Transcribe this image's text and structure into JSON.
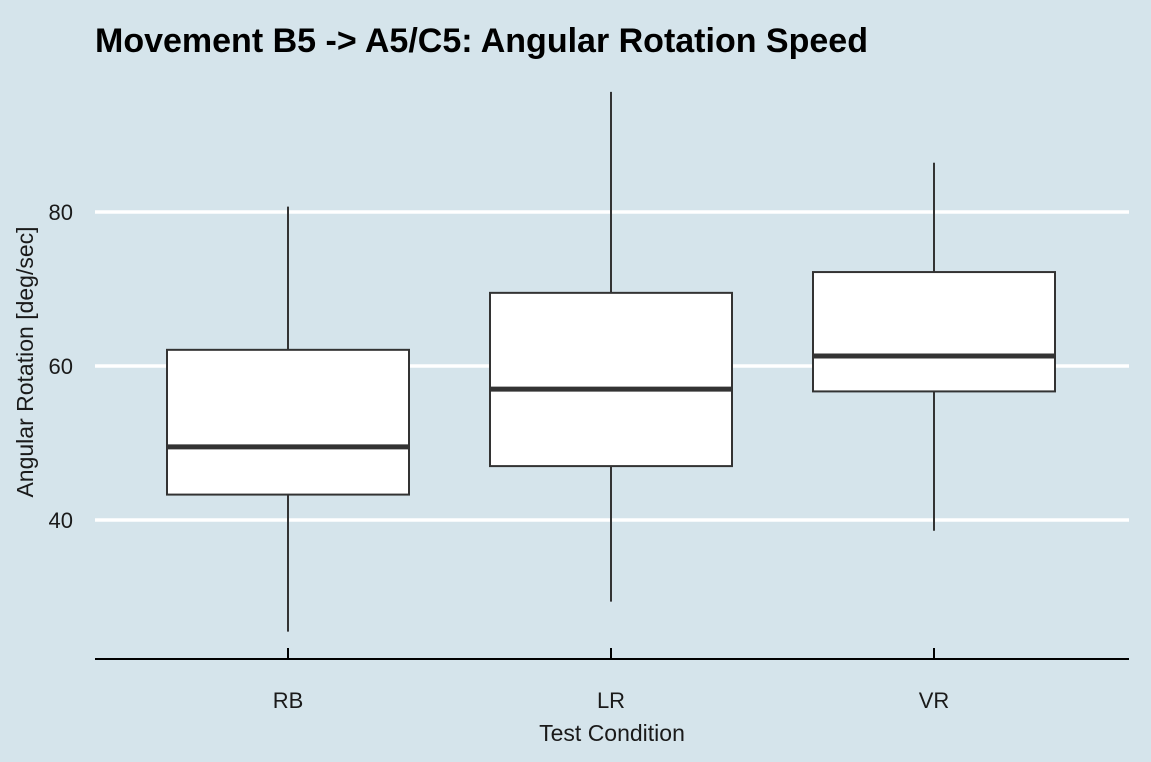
{
  "chart_data": {
    "type": "boxplot",
    "title": "Movement B5 -> A5/C5: Angular Rotation Speed",
    "xlabel": "Test Condition",
    "ylabel": "Angular Rotation [deg/sec]",
    "categories": [
      "RB",
      "LR",
      "VR"
    ],
    "ylim": [
      22,
      98
    ],
    "yticks": [
      40,
      60,
      80
    ],
    "grid": "horizontal",
    "boxes": [
      {
        "category": "RB",
        "min": 25.5,
        "q1": 43.3,
        "median": 49.5,
        "q3": 62.1,
        "max": 80.7
      },
      {
        "category": "LR",
        "min": 29.4,
        "q1": 47.0,
        "median": 57.0,
        "q3": 69.5,
        "max": 95.6
      },
      {
        "category": "VR",
        "min": 38.6,
        "q1": 56.7,
        "median": 61.3,
        "q3": 72.2,
        "max": 86.4
      }
    ],
    "colors": {
      "background": "#d5e4eb",
      "gridline": "#ffffff",
      "box_fill": "#ffffff",
      "box_stroke": "#333333",
      "axis": "#000000"
    }
  }
}
